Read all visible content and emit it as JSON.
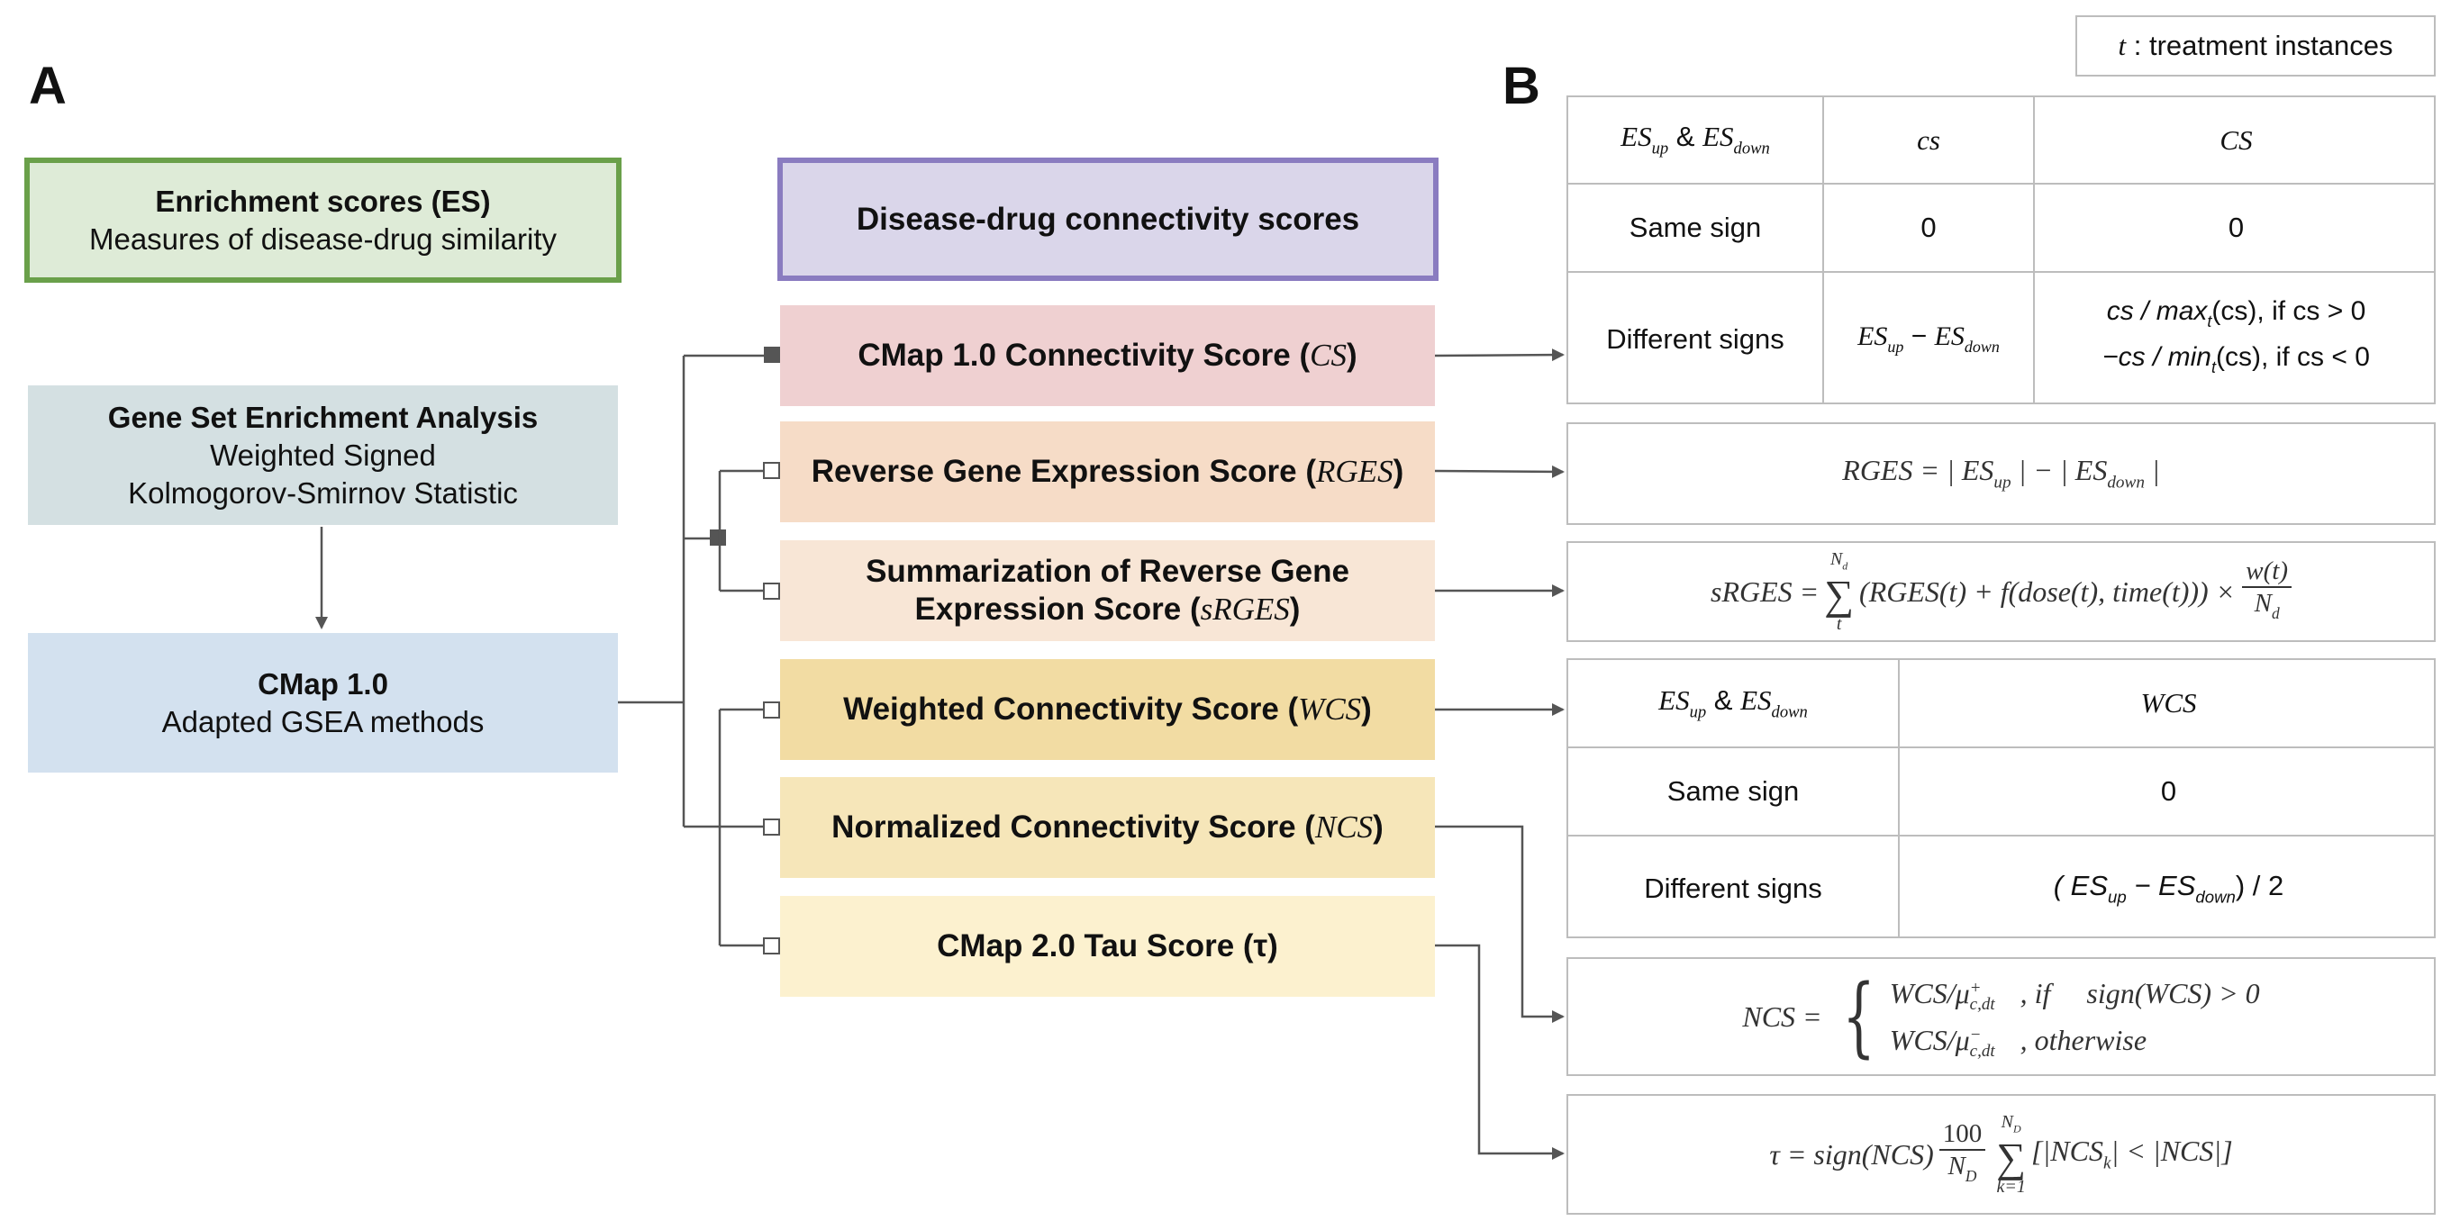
{
  "legend": {
    "t": "t",
    "text": " : treatment instances"
  },
  "panel_a": {
    "letter": "A"
  },
  "panel_b": {
    "letter": "B"
  },
  "es_box": {
    "title": "Enrichment scores (ES)",
    "subtitle": "Measures of disease-drug similarity"
  },
  "gsea_box": {
    "title": "Gene Set Enrichment Analysis",
    "line2": "Weighted Signed",
    "line3": "Kolmogorov-Smirnov Statistic"
  },
  "cmap_box": {
    "title": "CMap 1.0",
    "subtitle": "Adapted GSEA methods"
  },
  "header_box": {
    "title": "Disease-drug connectivity scores"
  },
  "scores": {
    "cs": {
      "name": "CMap 1.0 Connectivity Score (",
      "abbr": "CS",
      "close": ")"
    },
    "rges": {
      "name": "Reverse Gene Expression Score (",
      "abbr": "RGES",
      "close": ")"
    },
    "srges": {
      "line1": "Summarization of Reverse Gene",
      "name": "Expression Score (",
      "abbr": "sRGES",
      "close": ")"
    },
    "wcs": {
      "name": "Weighted Connectivity Score (",
      "abbr": "WCS",
      "close": ")"
    },
    "ncs": {
      "name": "Normalized Connectivity Score (",
      "abbr": "NCS",
      "close": ")"
    },
    "tau": {
      "name": "CMap 2.0 Tau Score (",
      "abbr": "τ",
      "close": ")"
    }
  },
  "cs_table": {
    "h1_es": "ES",
    "h1_up": "up",
    "h1_amp": " & ",
    "h1_down": "down",
    "h2": "cs",
    "h3": "CS",
    "r1c1": "Same sign",
    "r1c2": "0",
    "r1c3": "0",
    "r2c1": "Different signs",
    "r2c2_a": "ES",
    "r2c2_up": "up",
    "r2c2_minus": " − ",
    "r2c2_b": "ES",
    "r2c2_down": "down",
    "r2c3_l1a": "cs / max",
    "r2c3_l1t": "t",
    "r2c3_l1b": "(cs), if cs > 0",
    "r2c3_l2a": "−cs / min",
    "r2c3_l2t": "t",
    "r2c3_l2b": "(cs), if cs < 0"
  },
  "rges_formula": {
    "lhs": "RGES = | ES",
    "up": "up",
    "mid": " | − | ES",
    "down": "down",
    "end": " |"
  },
  "srges_formula": {
    "lhs": "sRGES = ",
    "sigma": "∑",
    "top": "N",
    "top_sub": "d",
    "bottom": "t",
    "body": "(RGES(t) + f(dose(t), time(t))) ×",
    "num": "w(t)",
    "den": "N",
    "den_sub": "d"
  },
  "wcs_table": {
    "h1_es": "ES",
    "h1_up": "up",
    "h1_amp": " & ",
    "h1_down": "down",
    "h2": "WCS",
    "r1c1": "Same sign",
    "r1c2": "0",
    "r2c1": "Different signs",
    "r2c2_open": "( ES",
    "r2c2_up": "up",
    "r2c2_minus": " − ES",
    "r2c2_down": "down",
    "r2c2_close": ") / 2"
  },
  "ncs_formula": {
    "lhs": "NCS =",
    "brace": "{",
    "l1a": "WCS/μ",
    "l1sup": "+",
    "l1sub": "c,dt",
    "l1cond": ", if     sign(WCS) > 0",
    "l2a": "WCS/μ",
    "l2sup": "−",
    "l2sub": "c,dt",
    "l2cond": ", otherwise"
  },
  "tau_formula": {
    "lhs": "τ = sign(NCS)",
    "num": "100",
    "den": "N",
    "den_sub": "D",
    "sigma": "∑",
    "top": "N",
    "top_sub": "D",
    "bottom": "k=1",
    "body": "[|NCS",
    "body_sub": "k",
    "body2": "| < |NCS|]"
  },
  "colors": {
    "es_fill": "#deebd7",
    "es_border": "#6aa04a",
    "gsea_fill": "#d4e0e2",
    "cmap_fill": "#d3e1ef",
    "header_fill": "#dad6ea",
    "header_border": "#8a7cc0",
    "cs_fill": "#efd0d1",
    "rges_fill": "#f6dcc7",
    "srges_fill": "#f8e6d6",
    "wcs_fill": "#f2dca3",
    "ncs_fill": "#f6e6b9",
    "tau_fill": "#fcf1cf",
    "line": "#555555",
    "table_border": "#bdbdbd"
  }
}
